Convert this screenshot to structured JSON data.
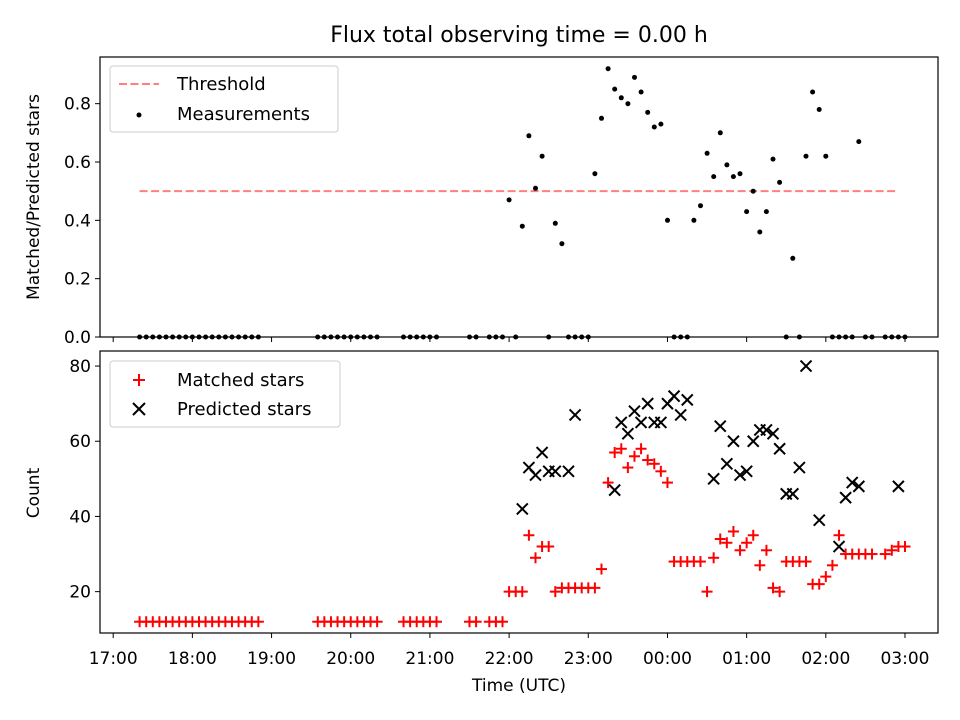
{
  "chart_data": [
    {
      "type": "scatter",
      "title": "Flux total observing time = 0.00 h",
      "xlabel": "",
      "ylabel": "Matched/Predicted stars",
      "xlim": [
        "16:50",
        "03:25"
      ],
      "ylim": [
        0,
        0.96
      ],
      "yticks": [
        0.0,
        0.2,
        0.4,
        0.6,
        0.8
      ],
      "legend_position": "top-left",
      "series": [
        {
          "name": "Threshold",
          "style": "dashed-line",
          "color": "#ff7f7f",
          "x": [
            "17:20",
            "02:55"
          ],
          "y": [
            0.5,
            0.5
          ]
        },
        {
          "name": "Measurements",
          "style": "dot",
          "color": "#000000",
          "x": [
            "17:20",
            "17:25",
            "17:30",
            "17:35",
            "17:40",
            "17:45",
            "17:50",
            "17:55",
            "18:00",
            "18:05",
            "18:10",
            "18:15",
            "18:20",
            "18:25",
            "18:30",
            "18:35",
            "18:40",
            "18:45",
            "18:50",
            "19:35",
            "19:40",
            "19:45",
            "19:50",
            "19:55",
            "20:00",
            "20:05",
            "20:10",
            "20:15",
            "20:20",
            "20:40",
            "20:45",
            "20:50",
            "20:55",
            "21:00",
            "21:05",
            "21:30",
            "21:35",
            "21:45",
            "21:50",
            "21:55",
            "22:00",
            "22:05",
            "22:10",
            "22:15",
            "22:20",
            "22:25",
            "22:30",
            "22:35",
            "22:40",
            "22:45",
            "22:50",
            "22:55",
            "23:00",
            "23:05",
            "23:10",
            "23:15",
            "23:20",
            "23:25",
            "23:30",
            "23:35",
            "23:40",
            "23:45",
            "23:50",
            "23:55",
            "00:00",
            "00:05",
            "00:10",
            "00:15",
            "00:20",
            "00:25",
            "00:30",
            "00:35",
            "00:40",
            "00:45",
            "00:50",
            "00:55",
            "01:00",
            "01:05",
            "01:10",
            "01:15",
            "01:20",
            "01:25",
            "01:30",
            "01:35",
            "01:40",
            "01:45",
            "01:50",
            "01:55",
            "02:00",
            "02:05",
            "02:10",
            "02:15",
            "02:20",
            "02:25",
            "02:30",
            "02:35",
            "02:45",
            "02:50",
            "02:55",
            "03:00"
          ],
          "y": [
            0,
            0,
            0,
            0,
            0,
            0,
            0,
            0,
            0,
            0,
            0,
            0,
            0,
            0,
            0,
            0,
            0,
            0,
            0,
            0,
            0,
            0,
            0,
            0,
            0,
            0,
            0,
            0,
            0,
            0,
            0,
            0,
            0,
            0,
            0,
            0,
            0,
            0,
            0,
            0,
            0.47,
            0,
            0.38,
            0.69,
            0.51,
            0.62,
            0,
            0.39,
            0.32,
            0,
            0,
            0,
            0,
            0.56,
            0.75,
            0.92,
            0.85,
            0.82,
            0.8,
            0.89,
            0.84,
            0.77,
            0.72,
            0.73,
            0.4,
            0,
            0,
            0,
            0.4,
            0.45,
            0.63,
            0.55,
            0.7,
            0.59,
            0.55,
            0.56,
            0.43,
            0.5,
            0.36,
            0.43,
            0.61,
            0.53,
            0,
            0.27,
            0,
            0.62,
            0.84,
            0.78,
            0.62,
            0,
            0,
            0,
            0,
            0.67,
            0,
            0,
            0,
            0,
            0,
            0
          ]
        }
      ]
    },
    {
      "type": "scatter",
      "title": "",
      "xlabel": "Time (UTC)",
      "ylabel": "Count",
      "xlim": [
        "16:50",
        "03:25"
      ],
      "ylim": [
        9,
        84
      ],
      "yticks": [
        20,
        40,
        60,
        80
      ],
      "xticks": [
        "17:00",
        "18:00",
        "19:00",
        "20:00",
        "21:00",
        "22:00",
        "23:00",
        "00:00",
        "01:00",
        "02:00",
        "03:00"
      ],
      "legend_position": "top-left",
      "series": [
        {
          "name": "Matched stars",
          "style": "plus",
          "color": "#ff0000",
          "x": [
            "17:20",
            "17:25",
            "17:30",
            "17:35",
            "17:40",
            "17:45",
            "17:50",
            "17:55",
            "18:00",
            "18:05",
            "18:10",
            "18:15",
            "18:20",
            "18:25",
            "18:30",
            "18:35",
            "18:40",
            "18:45",
            "18:50",
            "19:35",
            "19:40",
            "19:45",
            "19:50",
            "19:55",
            "20:00",
            "20:05",
            "20:10",
            "20:15",
            "20:20",
            "20:40",
            "20:45",
            "20:50",
            "20:55",
            "21:00",
            "21:05",
            "21:30",
            "21:35",
            "21:45",
            "21:50",
            "21:55",
            "22:00",
            "22:05",
            "22:10",
            "22:15",
            "22:20",
            "22:25",
            "22:30",
            "22:35",
            "22:40",
            "22:45",
            "22:50",
            "22:55",
            "23:00",
            "23:05",
            "23:10",
            "23:15",
            "23:20",
            "23:25",
            "23:30",
            "23:35",
            "23:40",
            "23:45",
            "23:50",
            "23:55",
            "00:00",
            "00:05",
            "00:10",
            "00:15",
            "00:20",
            "00:25",
            "00:30",
            "00:35",
            "00:40",
            "00:45",
            "00:50",
            "00:55",
            "01:00",
            "01:05",
            "01:10",
            "01:15",
            "01:20",
            "01:25",
            "01:30",
            "01:35",
            "01:40",
            "01:45",
            "01:50",
            "01:55",
            "02:00",
            "02:05",
            "02:10",
            "02:15",
            "02:20",
            "02:25",
            "02:30",
            "02:35",
            "02:45",
            "02:50",
            "02:55",
            "03:00"
          ],
          "y": [
            12,
            12,
            12,
            12,
            12,
            12,
            12,
            12,
            12,
            12,
            12,
            12,
            12,
            12,
            12,
            12,
            12,
            12,
            12,
            12,
            12,
            12,
            12,
            12,
            12,
            12,
            12,
            12,
            12,
            12,
            12,
            12,
            12,
            12,
            12,
            12,
            12,
            12,
            12,
            12,
            20,
            20,
            20,
            35,
            29,
            32,
            32,
            20,
            21,
            21,
            21,
            21,
            21,
            21,
            26,
            49,
            57,
            58,
            53,
            56,
            58,
            55,
            54,
            52,
            49,
            28,
            28,
            28,
            28,
            28,
            20,
            29,
            34,
            33,
            36,
            31,
            33,
            35,
            27,
            31,
            21,
            20,
            28,
            28,
            28,
            28,
            22,
            22,
            24,
            27,
            35,
            30,
            30,
            30,
            30,
            30,
            30,
            31,
            32,
            32
          ]
        },
        {
          "name": "Predicted stars",
          "style": "x",
          "color": "#000000",
          "x": [
            "22:10",
            "22:15",
            "22:20",
            "22:25",
            "22:30",
            "22:35",
            "22:45",
            "22:50",
            "23:20",
            "23:25",
            "23:30",
            "23:35",
            "23:40",
            "23:45",
            "23:50",
            "23:55",
            "00:00",
            "00:05",
            "00:10",
            "00:15",
            "00:35",
            "00:40",
            "00:45",
            "00:50",
            "00:55",
            "01:00",
            "01:05",
            "01:10",
            "01:15",
            "01:20",
            "01:25",
            "01:30",
            "01:35",
            "01:40",
            "01:45",
            "01:55",
            "02:10",
            "02:15",
            "02:20",
            "02:25",
            "02:55"
          ],
          "y": [
            42,
            53,
            51,
            57,
            52,
            52,
            52,
            67,
            47,
            65,
            62,
            68,
            65,
            70,
            65,
            65,
            70,
            72,
            67,
            71,
            50,
            64,
            54,
            60,
            51,
            52,
            60,
            63,
            63,
            62,
            58,
            46,
            46,
            53,
            80,
            39,
            32,
            45,
            49,
            48,
            48
          ]
        }
      ]
    }
  ]
}
